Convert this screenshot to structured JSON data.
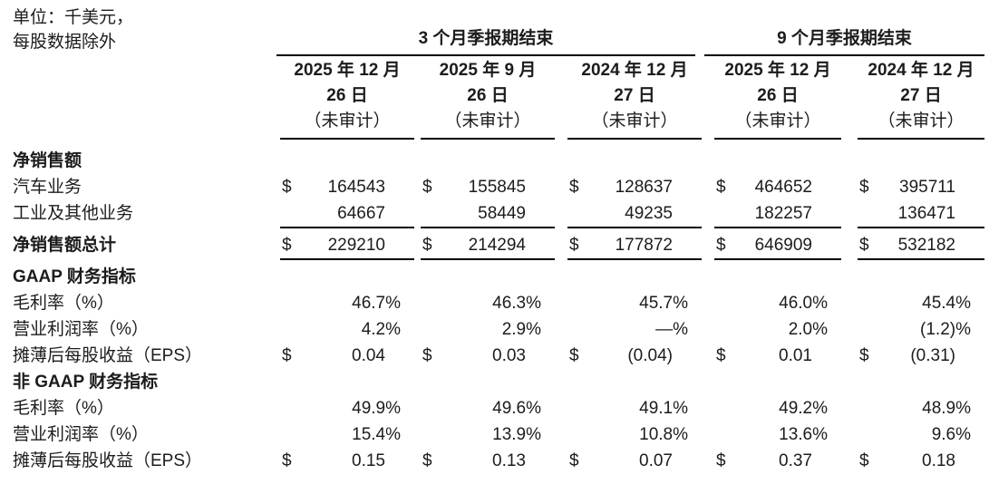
{
  "unit": {
    "line1": "单位：千美元，",
    "line2": "每股数据除外"
  },
  "header": {
    "groups": [
      {
        "label": "3 个月季报期结束",
        "columns": [
          {
            "date_line1": "2025 年 12 月",
            "date_line2": "26 日",
            "note": "（未审计）"
          },
          {
            "date_line1": "2025 年 9 月",
            "date_line2": "26 日",
            "note": "（未审计）"
          },
          {
            "date_line1": "2024 年 12 月",
            "date_line2": "27 日",
            "note": "（未审计）"
          }
        ]
      },
      {
        "label": "9 个月季报期结束",
        "columns": [
          {
            "date_line1": "2025 年 12 月",
            "date_line2": "26 日",
            "note": "（未审计）"
          },
          {
            "date_line1": "2024 年 12 月",
            "date_line2": "27 日",
            "note": "（未审计）"
          }
        ]
      }
    ]
  },
  "rows": [
    {
      "label": "净销售额",
      "cells": []
    },
    {
      "label": "汽车业务",
      "cells": [
        {
          "currency": "$",
          "value": "164543"
        },
        {
          "currency": "$",
          "value": "155845"
        },
        {
          "currency": "$",
          "value": "128637"
        },
        {
          "currency": "$",
          "value": "464652"
        },
        {
          "currency": "$",
          "value": "395711"
        }
      ]
    },
    {
      "label": "工业及其他业务",
      "cells": [
        {
          "value": "64667"
        },
        {
          "value": "58449"
        },
        {
          "value": "49235"
        },
        {
          "value": "182257"
        },
        {
          "value": "136471"
        }
      ]
    },
    {
      "label": "净销售额总计",
      "cells": [
        {
          "currency": "$",
          "value": "229210"
        },
        {
          "currency": "$",
          "value": "214294"
        },
        {
          "currency": "$",
          "value": "177872"
        },
        {
          "currency": "$",
          "value": "646909"
        },
        {
          "currency": "$",
          "value": "532182"
        }
      ]
    },
    {
      "label": "GAAP 财务指标",
      "cells": []
    },
    {
      "label": "毛利率（%）",
      "cells": [
        {
          "value": "46.7%"
        },
        {
          "value": "46.3%"
        },
        {
          "value": "45.7%"
        },
        {
          "value": "46.0%"
        },
        {
          "value": "45.4%"
        }
      ]
    },
    {
      "label": "营业利润率（%）",
      "cells": [
        {
          "value": "4.2%"
        },
        {
          "value": "2.9%"
        },
        {
          "value": "—%"
        },
        {
          "value": "2.0%"
        },
        {
          "value": "(1.2)%"
        }
      ]
    },
    {
      "label": "摊薄后每股收益（EPS）",
      "cells": [
        {
          "currency": "$",
          "value": "0.04"
        },
        {
          "currency": "$",
          "value": "0.03"
        },
        {
          "currency": "$",
          "value": "(0.04)"
        },
        {
          "currency": "$",
          "value": "0.01"
        },
        {
          "currency": "$",
          "value": "(0.31)"
        }
      ]
    },
    {
      "label": "非 GAAP 财务指标",
      "cells": []
    },
    {
      "label": "毛利率（%）",
      "cells": [
        {
          "value": "49.9%"
        },
        {
          "value": "49.6%"
        },
        {
          "value": "49.1%"
        },
        {
          "value": "49.2%"
        },
        {
          "value": "48.9%"
        }
      ]
    },
    {
      "label": "营业利润率（%）",
      "cells": [
        {
          "value": "15.4%"
        },
        {
          "value": "13.9%"
        },
        {
          "value": "10.8%"
        },
        {
          "value": "13.6%"
        },
        {
          "value": "9.6%"
        }
      ]
    },
    {
      "label": "摊薄后每股收益（EPS）",
      "cells": [
        {
          "currency": "$",
          "value": "0.15"
        },
        {
          "currency": "$",
          "value": "0.13"
        },
        {
          "currency": "$",
          "value": "0.07"
        },
        {
          "currency": "$",
          "value": "0.37"
        },
        {
          "currency": "$",
          "value": "0.18"
        }
      ]
    }
  ]
}
